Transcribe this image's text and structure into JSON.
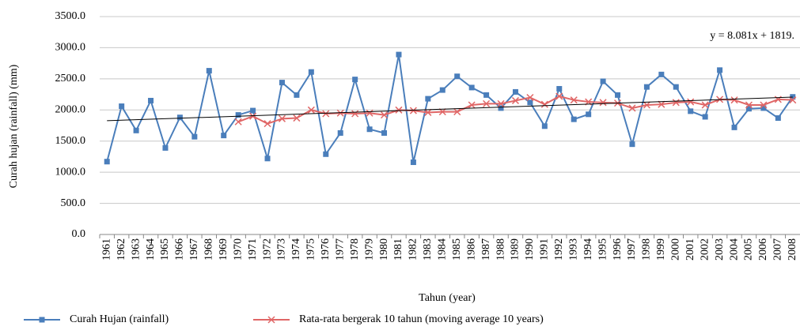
{
  "chart_data": {
    "type": "line",
    "ylabel": "Curah hujan (rainfall)  (mm)",
    "xlabel": "Tahun (year)",
    "categories": [
      "1961",
      "1962",
      "1963",
      "1964",
      "1965",
      "1966",
      "1967",
      "1968",
      "1969",
      "1970",
      "1971",
      "1972",
      "1973",
      "1974",
      "1975",
      "1976",
      "1977",
      "1978",
      "1979",
      "1980",
      "1981",
      "1982",
      "1983",
      "1984",
      "1985",
      "1986",
      "1987",
      "1988",
      "1989",
      "1990",
      "1991",
      "1992",
      "1993",
      "1994",
      "1995",
      "1996",
      "1997",
      "1998",
      "1999",
      "2000",
      "2001",
      "2002",
      "2003",
      "2004",
      "2005",
      "2006",
      "2007",
      "2008"
    ],
    "series": [
      {
        "name": "Curah Hujan (rainfall)",
        "color": "#4a7ebb",
        "marker": "square",
        "values": [
          1170,
          2060,
          1670,
          2150,
          1390,
          1880,
          1570,
          2630,
          1590,
          1920,
          1990,
          1220,
          2440,
          2240,
          2610,
          1290,
          1630,
          2490,
          1690,
          1630,
          2890,
          1160,
          2180,
          2320,
          2540,
          2360,
          2240,
          2030,
          2290,
          2120,
          1740,
          2340,
          1850,
          1930,
          2460,
          2240,
          1450,
          2370,
          2570,
          2370,
          1980,
          1890,
          2640,
          1720,
          2020,
          2030,
          1870,
          2210
        ]
      },
      {
        "name": "Rata-rata bergerak 10 tahun (moving average 10 years)",
        "color": "#e06666",
        "marker": "x",
        "values": [
          null,
          null,
          null,
          null,
          null,
          null,
          null,
          null,
          null,
          1810,
          1900,
          1780,
          1860,
          1870,
          2000,
          1940,
          1950,
          1940,
          1950,
          1920,
          2000,
          1990,
          1960,
          1970,
          1970,
          2080,
          2100,
          2100,
          2150,
          2200,
          2090,
          2220,
          2160,
          2130,
          2120,
          2110,
          2030,
          2080,
          2090,
          2120,
          2130,
          2080,
          2170,
          2160,
          2080,
          2080,
          2170,
          2160
        ]
      }
    ],
    "trendline": {
      "label": "y = 8.081x + 1819.",
      "slope": 8.081,
      "intercept": 1819,
      "color": "#000000"
    },
    "ylim": [
      0,
      3500
    ],
    "yticks": [
      {
        "value": 0,
        "label": "0.0"
      },
      {
        "value": 500,
        "label": "500.0"
      },
      {
        "value": 1000,
        "label": "1000.0"
      },
      {
        "value": 1500,
        "label": "1500.0"
      },
      {
        "value": 2000,
        "label": "2000.0"
      },
      {
        "value": 2500,
        "label": "2500.0"
      },
      {
        "value": 3000,
        "label": "3000.0"
      },
      {
        "value": 3500,
        "label": "3500.0"
      }
    ],
    "grid": true
  }
}
